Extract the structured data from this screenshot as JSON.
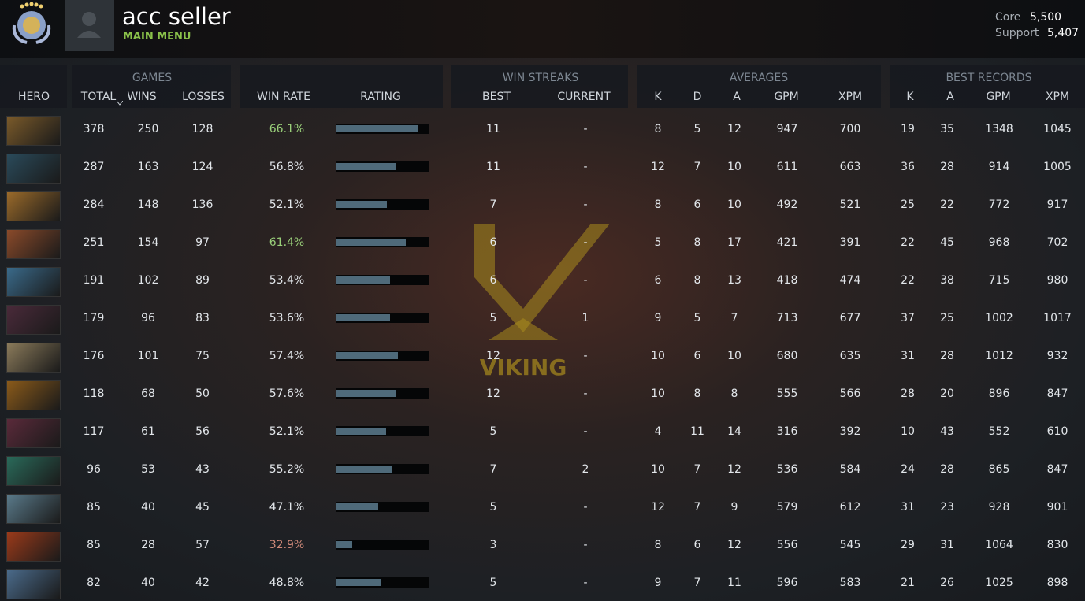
{
  "header": {
    "name": "acc seller",
    "subtitle": "MAIN MENU",
    "ranks": [
      {
        "label": "Core",
        "value": "5,500"
      },
      {
        "label": "Support",
        "value": "5,407"
      }
    ]
  },
  "watermark": "VIKING",
  "table": {
    "groups": [
      "GAMES",
      "WIN STREAKS",
      "AVERAGES",
      "BEST RECORDS"
    ],
    "columns": [
      "HERO",
      "TOTAL",
      "WINS",
      "LOSSES",
      "WIN RATE",
      "RATING",
      "BEST",
      "CURRENT",
      "K",
      "D",
      "A",
      "GPM",
      "XPM",
      "K",
      "A",
      "GPM",
      "XPM"
    ],
    "rows": [
      [
        378,
        250,
        128,
        "66.1%",
        87,
        11,
        "-",
        8,
        5,
        12,
        947,
        700,
        19,
        35,
        1348,
        1045
      ],
      [
        287,
        163,
        124,
        "56.8%",
        65,
        11,
        "-",
        12,
        7,
        10,
        611,
        663,
        36,
        28,
        914,
        1005
      ],
      [
        284,
        148,
        136,
        "52.1%",
        55,
        7,
        "-",
        8,
        6,
        10,
        492,
        521,
        25,
        22,
        772,
        917
      ],
      [
        251,
        154,
        97,
        "61.4%",
        75,
        6,
        "-",
        5,
        8,
        17,
        421,
        391,
        22,
        45,
        968,
        702
      ],
      [
        191,
        102,
        89,
        "53.4%",
        58,
        6,
        "-",
        6,
        8,
        13,
        418,
        474,
        22,
        38,
        715,
        980
      ],
      [
        179,
        96,
        83,
        "53.6%",
        58,
        5,
        1,
        9,
        5,
        7,
        713,
        677,
        37,
        25,
        1002,
        1017
      ],
      [
        176,
        101,
        75,
        "57.4%",
        66,
        12,
        "-",
        10,
        6,
        10,
        680,
        635,
        31,
        28,
        1012,
        932
      ],
      [
        118,
        68,
        50,
        "57.6%",
        65,
        12,
        "-",
        10,
        8,
        8,
        555,
        566,
        28,
        20,
        896,
        847
      ],
      [
        117,
        61,
        56,
        "52.1%",
        54,
        5,
        "-",
        4,
        11,
        14,
        316,
        392,
        10,
        43,
        552,
        610
      ],
      [
        96,
        53,
        43,
        "55.2%",
        60,
        7,
        2,
        10,
        7,
        12,
        536,
        584,
        24,
        28,
        865,
        847
      ],
      [
        85,
        40,
        45,
        "47.1%",
        45,
        5,
        "-",
        12,
        7,
        9,
        579,
        612,
        31,
        23,
        928,
        901
      ],
      [
        85,
        28,
        57,
        "32.9%",
        18,
        3,
        "-",
        8,
        6,
        12,
        556,
        545,
        29,
        31,
        1064,
        830
      ],
      [
        82,
        40,
        42,
        "48.8%",
        48,
        5,
        "-",
        9,
        7,
        11,
        596,
        583,
        21,
        26,
        1025,
        898
      ]
    ]
  }
}
